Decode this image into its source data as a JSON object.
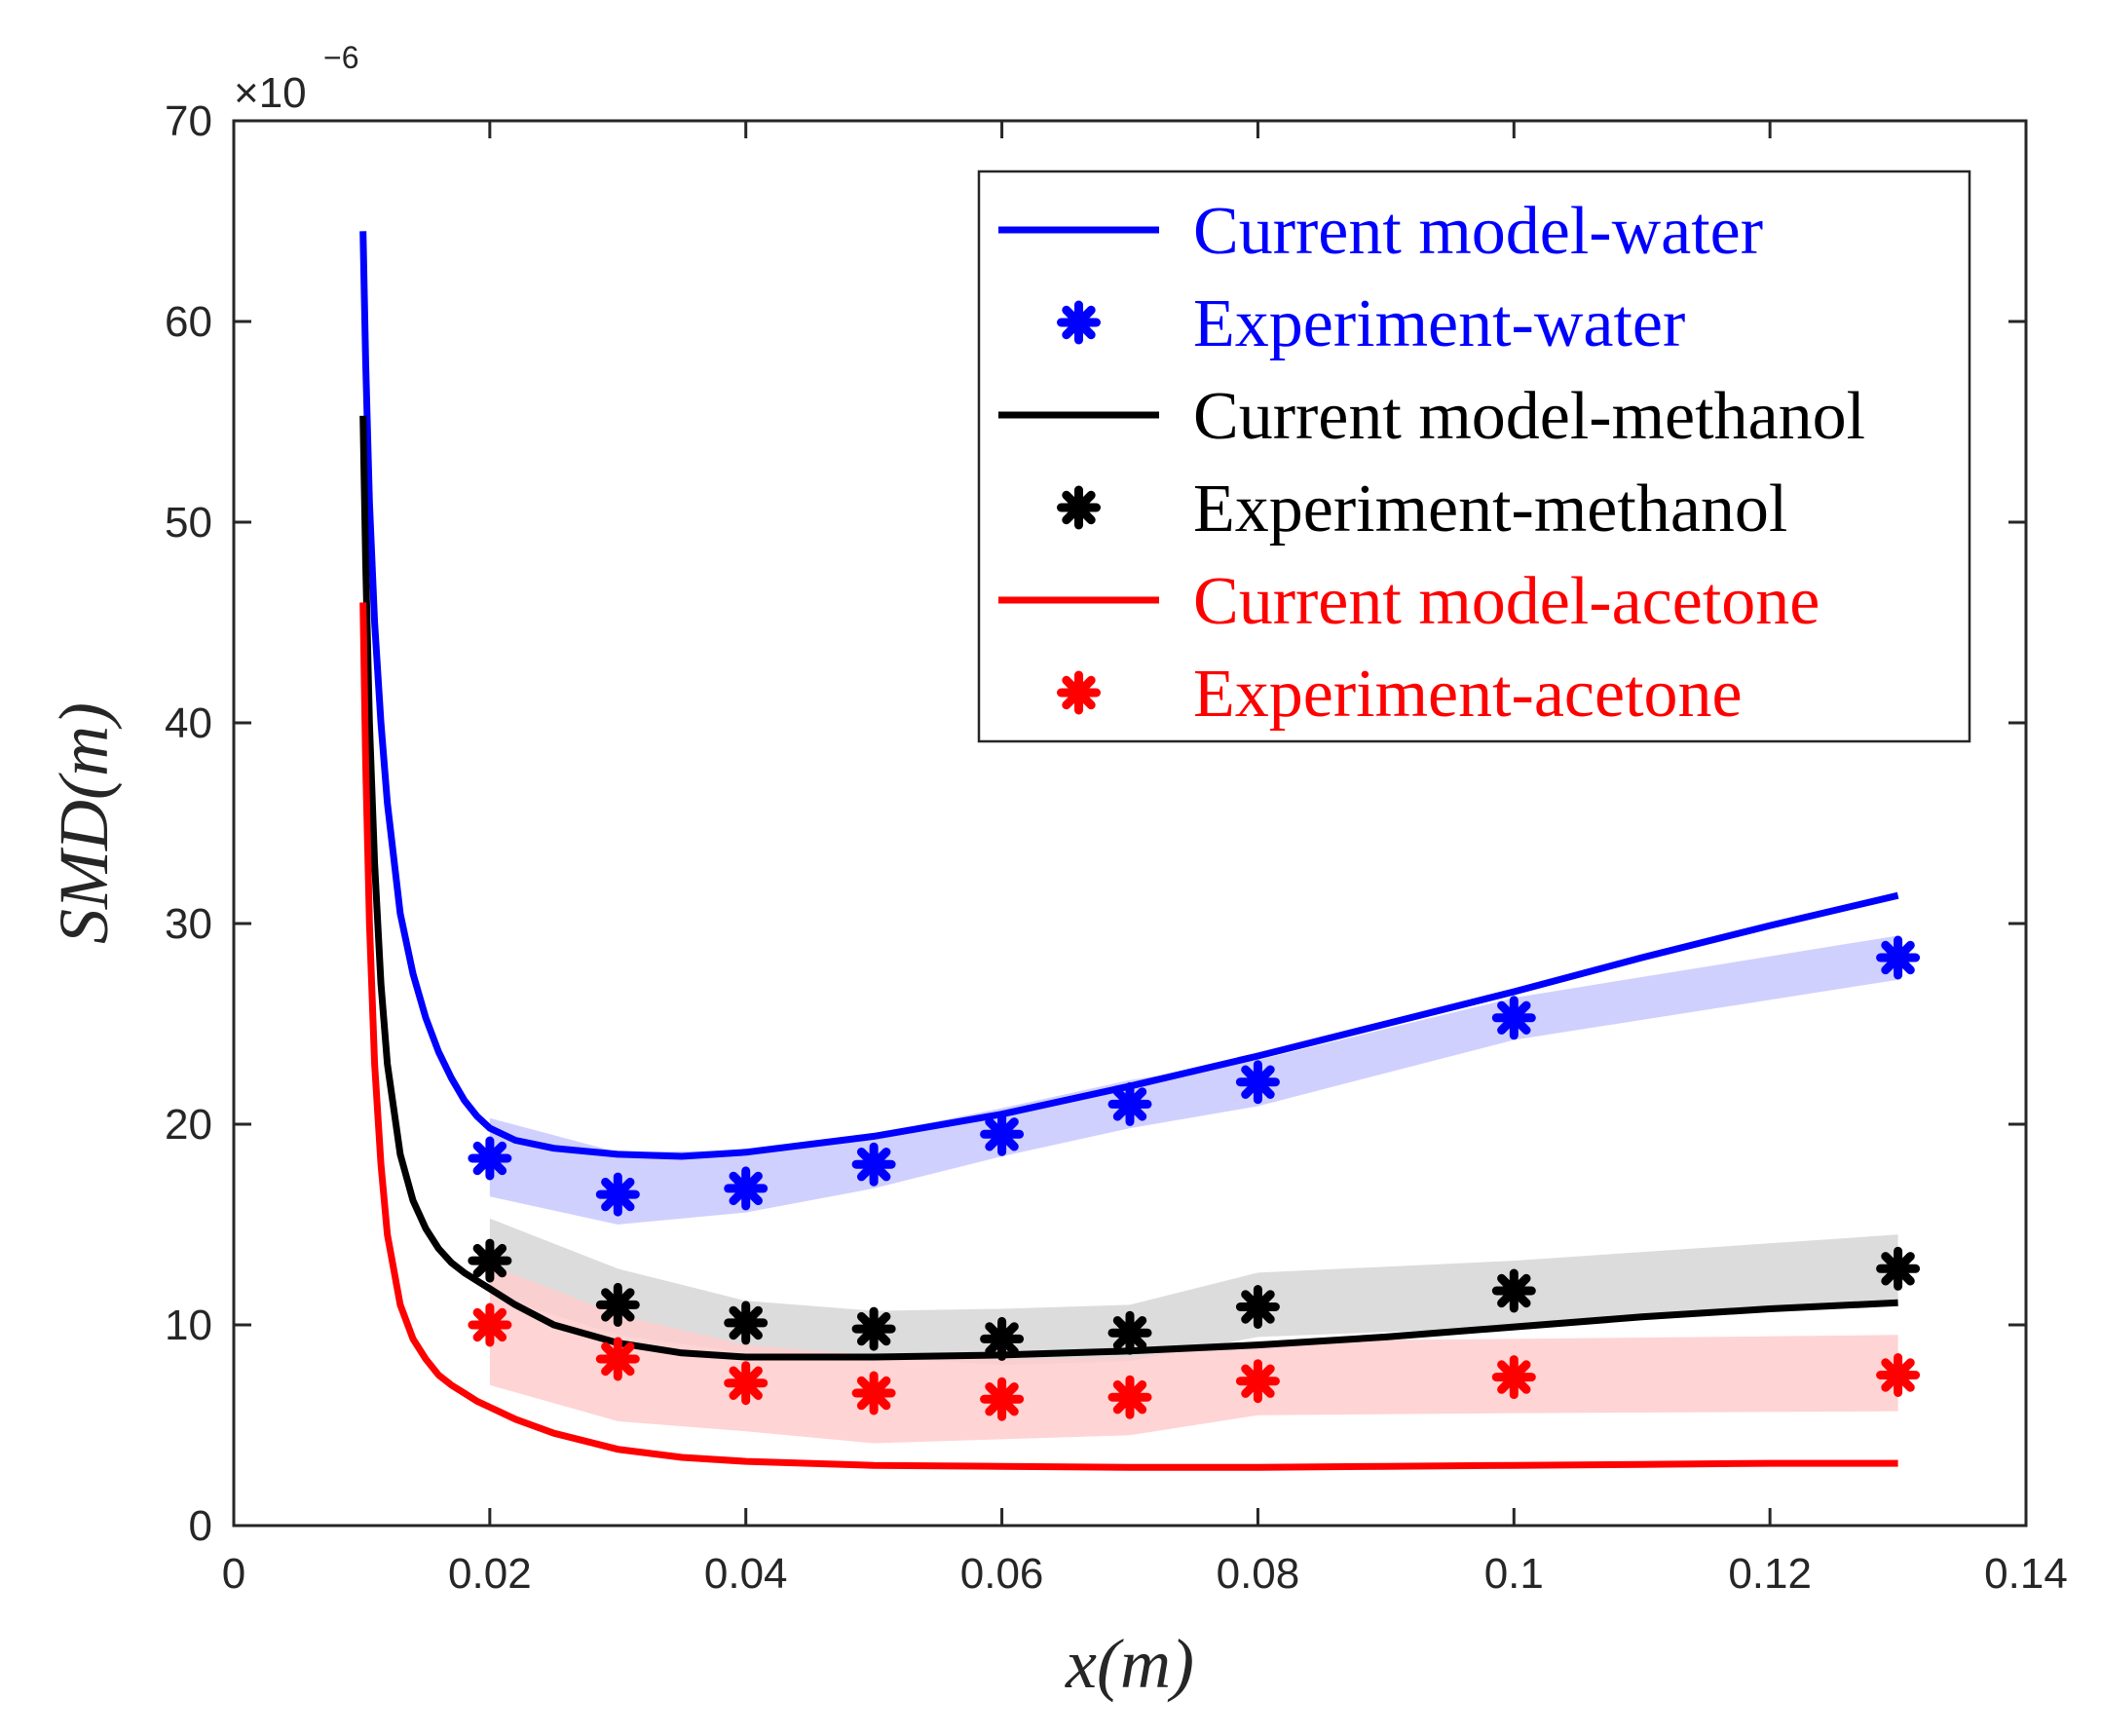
{
  "chart_data": {
    "type": "line",
    "title": "",
    "xlabel": "x(m)",
    "ylabel": "SMD(m)",
    "y_multiplier": {
      "base": "×10",
      "exponent": "−6"
    },
    "xlim": [
      0,
      0.14
    ],
    "ylim": [
      0,
      70
    ],
    "x_ticks": [
      0,
      0.02,
      0.04,
      0.06,
      0.08,
      0.1,
      0.12,
      0.14
    ],
    "x_tick_labels": [
      "0",
      "0.02",
      "0.04",
      "0.06",
      "0.08",
      "0.1",
      "0.12",
      "0.14"
    ],
    "y_ticks": [
      0,
      10,
      20,
      30,
      40,
      50,
      60,
      70
    ],
    "y_tick_labels": [
      "0",
      "10",
      "20",
      "30",
      "40",
      "50",
      "60",
      "70"
    ],
    "grid": false,
    "legend_position": "top-right",
    "series": [
      {
        "name": "Current model-water",
        "kind": "line",
        "color": "#0000ff",
        "x": [
          0.0101,
          0.0103,
          0.0106,
          0.011,
          0.0115,
          0.012,
          0.013,
          0.014,
          0.015,
          0.016,
          0.017,
          0.018,
          0.019,
          0.02,
          0.022,
          0.025,
          0.03,
          0.035,
          0.04,
          0.05,
          0.06,
          0.07,
          0.08,
          0.09,
          0.1,
          0.11,
          0.12,
          0.13
        ],
        "y": [
          64.5,
          58,
          51,
          45,
          40,
          36,
          30.5,
          27.5,
          25.3,
          23.6,
          22.3,
          21.2,
          20.4,
          19.8,
          19.2,
          18.8,
          18.5,
          18.4,
          18.6,
          19.4,
          20.5,
          21.9,
          23.4,
          25,
          26.6,
          28.3,
          29.9,
          31.4
        ]
      },
      {
        "name": "Experiment-water",
        "kind": "marker",
        "color": "#0000ff",
        "x": [
          0.02,
          0.03,
          0.04,
          0.05,
          0.06,
          0.07,
          0.08,
          0.1,
          0.13
        ],
        "y": [
          18.3,
          16.5,
          16.8,
          18.0,
          19.5,
          21.0,
          22.1,
          25.3,
          28.3
        ]
      },
      {
        "name": "Current model-methanol",
        "kind": "line",
        "color": "#000000",
        "x": [
          0.0101,
          0.0103,
          0.0106,
          0.011,
          0.0115,
          0.012,
          0.013,
          0.014,
          0.015,
          0.016,
          0.017,
          0.018,
          0.019,
          0.02,
          0.022,
          0.025,
          0.03,
          0.035,
          0.04,
          0.05,
          0.06,
          0.07,
          0.08,
          0.09,
          0.1,
          0.11,
          0.12,
          0.13
        ],
        "y": [
          55.3,
          48,
          40,
          33,
          27,
          23,
          18.5,
          16.2,
          14.8,
          13.8,
          13.1,
          12.6,
          12.2,
          11.8,
          11,
          10,
          9.1,
          8.6,
          8.4,
          8.4,
          8.5,
          8.7,
          9,
          9.4,
          9.9,
          10.4,
          10.8,
          11.1
        ]
      },
      {
        "name": "Experiment-methanol",
        "kind": "marker",
        "color": "#000000",
        "x": [
          0.02,
          0.03,
          0.04,
          0.05,
          0.06,
          0.07,
          0.08,
          0.1,
          0.13
        ],
        "y": [
          13.2,
          11.0,
          10.1,
          9.8,
          9.3,
          9.6,
          10.9,
          11.7,
          12.8
        ]
      },
      {
        "name": "Current model-acetone",
        "kind": "line",
        "color": "#ff0000",
        "x": [
          0.0101,
          0.0103,
          0.0106,
          0.011,
          0.0115,
          0.012,
          0.013,
          0.014,
          0.015,
          0.016,
          0.017,
          0.018,
          0.019,
          0.02,
          0.022,
          0.025,
          0.03,
          0.035,
          0.04,
          0.05,
          0.06,
          0.07,
          0.08,
          0.09,
          0.1,
          0.11,
          0.12,
          0.13
        ],
        "y": [
          46,
          38,
          30,
          23,
          18,
          14.5,
          11,
          9.3,
          8.3,
          7.5,
          7,
          6.6,
          6.2,
          5.9,
          5.3,
          4.6,
          3.8,
          3.4,
          3.2,
          3,
          2.95,
          2.9,
          2.9,
          2.95,
          3,
          3.05,
          3.1,
          3.1
        ]
      },
      {
        "name": "Experiment-acetone",
        "kind": "marker",
        "color": "#ff0000",
        "x": [
          0.02,
          0.03,
          0.04,
          0.05,
          0.06,
          0.07,
          0.08,
          0.1,
          0.13
        ],
        "y": [
          10.0,
          8.3,
          7.1,
          6.6,
          6.3,
          6.4,
          7.2,
          7.4,
          7.5
        ]
      }
    ],
    "bands": [
      {
        "name": "Experiment-water band",
        "color": "#c8c8ff",
        "x": [
          0.02,
          0.03,
          0.04,
          0.05,
          0.06,
          0.07,
          0.08,
          0.1,
          0.13
        ],
        "upper": [
          20.3,
          18.6,
          18.7,
          19.5,
          20.8,
          22.2,
          23.2,
          26.3,
          29.4
        ],
        "lower": [
          16.4,
          15.0,
          15.6,
          16.8,
          18.4,
          19.8,
          20.9,
          24.2,
          27.2
        ]
      },
      {
        "name": "Experiment-methanol band",
        "color": "#d6d6d6",
        "x": [
          0.02,
          0.03,
          0.04,
          0.05,
          0.06,
          0.07,
          0.08,
          0.1,
          0.13
        ],
        "upper": [
          15.3,
          12.8,
          11.2,
          10.7,
          10.8,
          11.0,
          12.6,
          13.2,
          14.5
        ],
        "lower": [
          11.5,
          9.5,
          8.6,
          8.4,
          8.0,
          8.2,
          9.4,
          9.9,
          11.0
        ]
      },
      {
        "name": "Experiment-acetone band",
        "color": "#ffcccc",
        "x": [
          0.02,
          0.03,
          0.04,
          0.05,
          0.06,
          0.07,
          0.08,
          0.1,
          0.13
        ],
        "upper": [
          13.0,
          10.5,
          9.0,
          8.5,
          8.3,
          8.4,
          9.2,
          9.3,
          9.5
        ],
        "lower": [
          7.0,
          5.2,
          4.7,
          4.1,
          4.3,
          4.5,
          5.5,
          5.6,
          5.7
        ]
      }
    ]
  }
}
